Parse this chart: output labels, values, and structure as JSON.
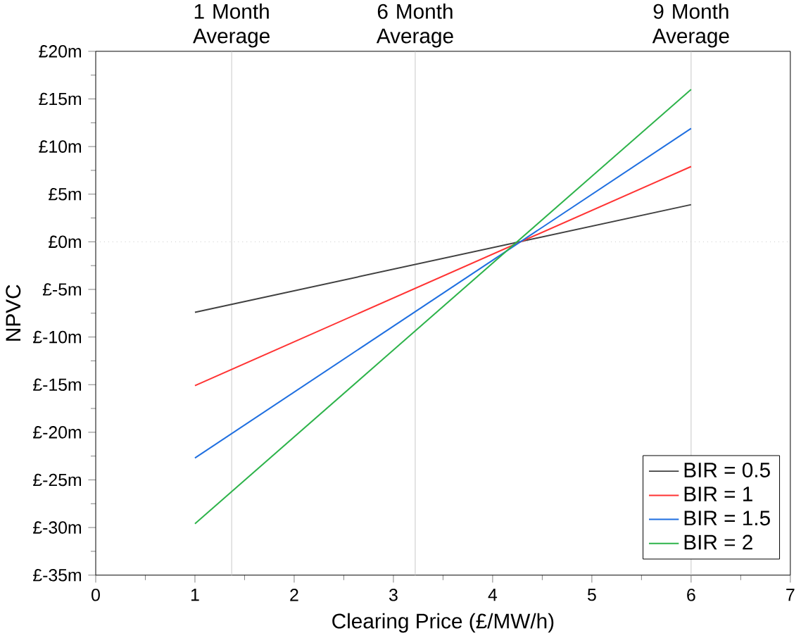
{
  "chart_data": {
    "type": "line",
    "xlabel": "Clearing Price (£/MW/h)",
    "ylabel": "NPVC",
    "xlim": [
      0,
      7
    ],
    "xticks": [
      0,
      1,
      2,
      3,
      4,
      5,
      6,
      7
    ],
    "ylim": [
      -35,
      20
    ],
    "yticks": [
      {
        "value": 20,
        "label": "£20m"
      },
      {
        "value": 15,
        "label": "£15m"
      },
      {
        "value": 10,
        "label": "£10m"
      },
      {
        "value": 5,
        "label": "£5m"
      },
      {
        "value": 0,
        "label": "£0m"
      },
      {
        "value": -5,
        "label": "£-5m"
      },
      {
        "value": -10,
        "label": "£-10m"
      },
      {
        "value": -15,
        "label": "£-15m"
      },
      {
        "value": -20,
        "label": "£-20m"
      },
      {
        "value": -25,
        "label": "£-25m"
      },
      {
        "value": -30,
        "label": "£-30m"
      },
      {
        "value": -35,
        "label": "£-35m"
      }
    ],
    "x": [
      1,
      6
    ],
    "series": [
      {
        "name": "BIR = 0.5",
        "color": "#404040",
        "values": [
          -7.4,
          3.9
        ]
      },
      {
        "name": "BIR = 1",
        "color": "#ff3333",
        "values": [
          -15.1,
          7.9
        ]
      },
      {
        "name": "BIR = 1.5",
        "color": "#1f6fe0",
        "values": [
          -22.7,
          11.9
        ]
      },
      {
        "name": "BIR = 2",
        "color": "#2db34a",
        "values": [
          -29.6,
          16.0
        ]
      }
    ],
    "ref_lines": [
      {
        "axis": "x",
        "value": 1.37,
        "label": "1 Month Average",
        "color": "#c8c8c8",
        "line_style": "solid"
      },
      {
        "axis": "x",
        "value": 3.22,
        "label": "6 Month Average",
        "color": "#c8c8c8",
        "line_style": "solid"
      },
      {
        "axis": "x",
        "value": 6,
        "label": "9 Month Average",
        "color": "#c8c8c8",
        "line_style": "solid"
      },
      {
        "axis": "y",
        "value": 0,
        "color": "#c8c8c8",
        "line_style": "dotted"
      }
    ],
    "legend": "bottom right",
    "grid": false,
    "marker": "none",
    "line_style": "solid"
  }
}
